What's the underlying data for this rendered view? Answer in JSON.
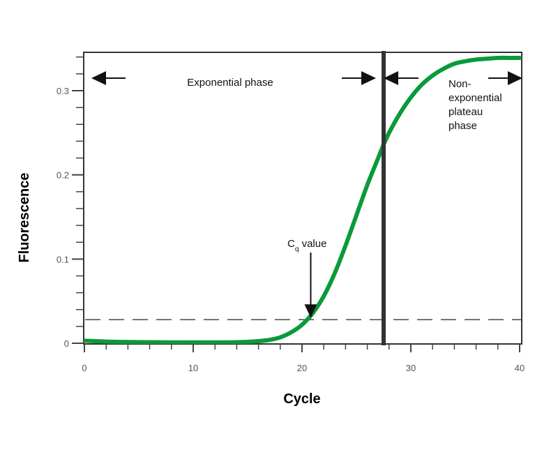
{
  "chart_data": {
    "type": "line",
    "title": "",
    "xlabel": "Cycle",
    "ylabel": "Fluorescence",
    "xlim": [
      0,
      40
    ],
    "ylim": [
      0,
      0.34
    ],
    "x_ticks": [
      0,
      10,
      20,
      30,
      40
    ],
    "x_tick_labels": [
      "0",
      "10",
      "20",
      "30",
      "40"
    ],
    "y_ticks": [
      0,
      0.1,
      0.2,
      0.3
    ],
    "y_tick_labels": [
      "0",
      "0.1",
      "0.2",
      "0.3"
    ],
    "grid": false,
    "series": [
      {
        "color": "#0a9a3a",
        "x": [
          0,
          2,
          4,
          6,
          8,
          10,
          12,
          14,
          16,
          17,
          18,
          19,
          20,
          21,
          22,
          23,
          24,
          25,
          26,
          27,
          27.5,
          28,
          29,
          30,
          31,
          32,
          33,
          34,
          35,
          36,
          37,
          38,
          39,
          40
        ],
        "y": [
          0.003,
          0.002,
          0.0015,
          0.0012,
          0.001,
          0.001,
          0.001,
          0.0012,
          0.0025,
          0.004,
          0.007,
          0.013,
          0.022,
          0.036,
          0.056,
          0.083,
          0.116,
          0.152,
          0.188,
          0.22,
          0.236,
          0.25,
          0.273,
          0.292,
          0.307,
          0.318,
          0.326,
          0.332,
          0.335,
          0.337,
          0.338,
          0.339,
          0.339,
          0.339
        ]
      }
    ],
    "threshold": 0.028,
    "phase_boundary_x": 27.5,
    "annotations": {
      "exponential_phase": "Exponential phase",
      "plateau_lines": [
        "Non-",
        "exponential",
        "plateau",
        "phase"
      ],
      "cq_main": "C",
      "cq_sub": "q",
      "cq_rest": " value",
      "cq_x": 20.8
    },
    "colors": {
      "curve": "#0a9a3a",
      "boundary": "#333333",
      "threshold": "#555555",
      "frame": "#333333"
    }
  }
}
